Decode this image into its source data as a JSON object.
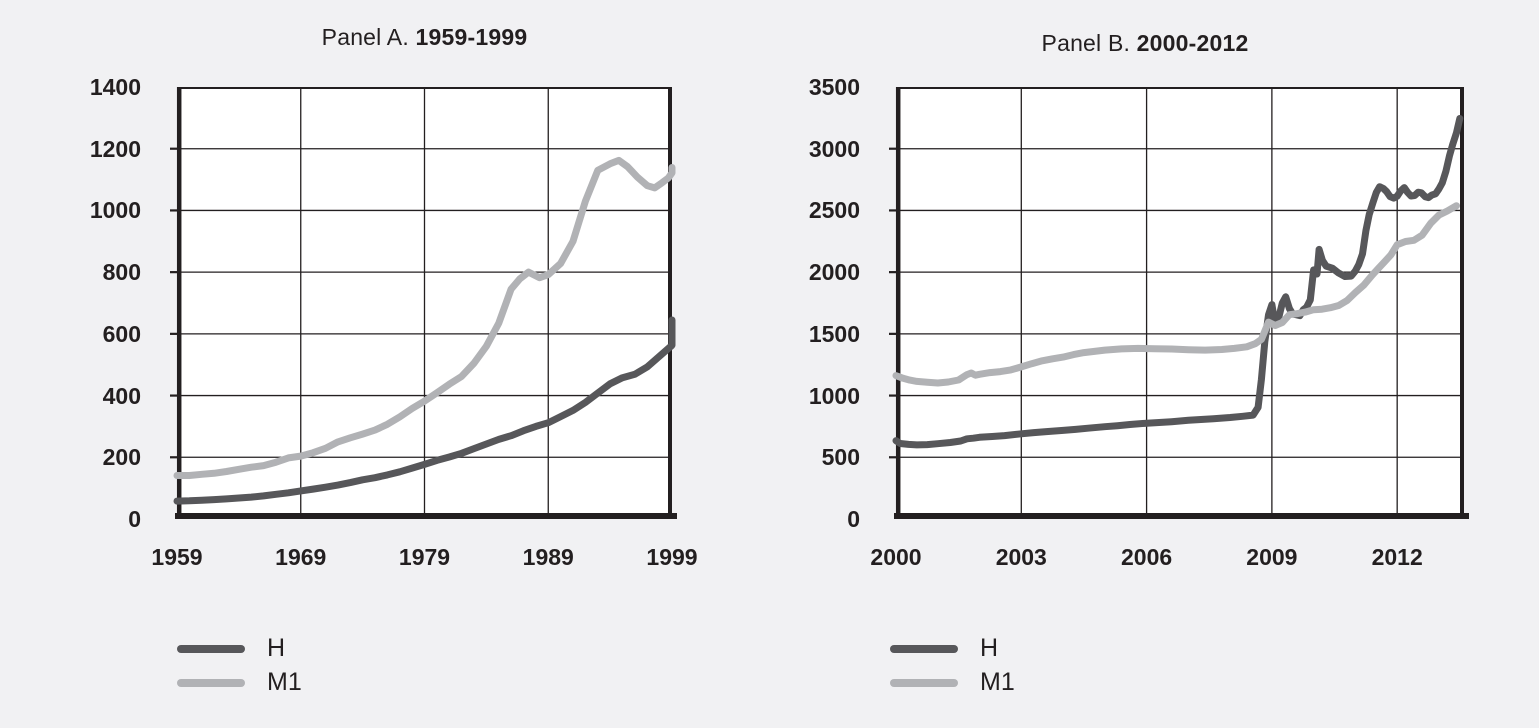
{
  "figure": {
    "background_color": "#f1f1f3",
    "plot_background_color": "#ffffff",
    "axis_color": "#231f20",
    "grid_color": "#231f20",
    "text_color": "#231f20"
  },
  "chart_data": [
    {
      "type": "line",
      "name": "panel-a",
      "title": "Panel A. 1959-1999",
      "title_regular": "Panel A. ",
      "title_bold": "1959-1999",
      "xlabel": "",
      "ylabel": "",
      "xlim": [
        1959,
        1999
      ],
      "ylim": [
        0,
        1400
      ],
      "x_ticks": [
        1959,
        1969,
        1979,
        1989,
        1999
      ],
      "x_gridlines": [
        1969,
        1979,
        1989
      ],
      "y_ticks": [
        0,
        200,
        400,
        600,
        800,
        1000,
        1200,
        1400
      ],
      "y_gridlines": [
        200,
        400,
        600,
        800,
        1000,
        1200
      ],
      "grid": true,
      "legend_position": "below-left",
      "series": [
        {
          "name": "H",
          "color": "#57575a",
          "stroke_width": 7,
          "points": [
            [
              1959,
              58
            ],
            [
              1960,
              59
            ],
            [
              1961,
              61
            ],
            [
              1962,
              63
            ],
            [
              1963,
              65
            ],
            [
              1964,
              68
            ],
            [
              1965,
              71
            ],
            [
              1966,
              75
            ],
            [
              1967,
              80
            ],
            [
              1968,
              85
            ],
            [
              1969,
              91
            ],
            [
              1970,
              97
            ],
            [
              1971,
              103
            ],
            [
              1972,
              110
            ],
            [
              1973,
              118
            ],
            [
              1974,
              127
            ],
            [
              1975,
              134
            ],
            [
              1976,
              143
            ],
            [
              1977,
              153
            ],
            [
              1978,
              165
            ],
            [
              1979,
              177
            ],
            [
              1980,
              190
            ],
            [
              1981,
              201
            ],
            [
              1982,
              213
            ],
            [
              1983,
              228
            ],
            [
              1984,
              243
            ],
            [
              1985,
              258
            ],
            [
              1986,
              270
            ],
            [
              1987,
              286
            ],
            [
              1988,
              300
            ],
            [
              1989,
              312
            ],
            [
              1990,
              332
            ],
            [
              1991,
              352
            ],
            [
              1992,
              378
            ],
            [
              1993,
              408
            ],
            [
              1994,
              438
            ],
            [
              1995,
              458
            ],
            [
              1996,
              469
            ],
            [
              1997,
              493
            ],
            [
              1998,
              528
            ],
            [
              1999,
              563
            ],
            [
              1999.5,
              585
            ],
            [
              1999.8,
              612
            ],
            [
              1999.95,
              645
            ]
          ]
        },
        {
          "name": "M1",
          "color": "#b1b2b5",
          "stroke_width": 7,
          "points": [
            [
              1959,
              141
            ],
            [
              1960,
              141
            ],
            [
              1961,
              145
            ],
            [
              1962,
              148
            ],
            [
              1963,
              154
            ],
            [
              1964,
              161
            ],
            [
              1965,
              168
            ],
            [
              1966,
              173
            ],
            [
              1967,
              184
            ],
            [
              1968,
              198
            ],
            [
              1969,
              204
            ],
            [
              1970,
              215
            ],
            [
              1971,
              229
            ],
            [
              1972,
              250
            ],
            [
              1973,
              263
            ],
            [
              1974,
              275
            ],
            [
              1975,
              288
            ],
            [
              1976,
              307
            ],
            [
              1977,
              331
            ],
            [
              1978,
              358
            ],
            [
              1979,
              382
            ],
            [
              1980,
              409
            ],
            [
              1981,
              437
            ],
            [
              1982,
              462
            ],
            [
              1983,
              505
            ],
            [
              1984,
              560
            ],
            [
              1985,
              635
            ],
            [
              1986,
              745
            ],
            [
              1986.7,
              778
            ],
            [
              1987.4,
              800
            ],
            [
              1988.3,
              782
            ],
            [
              1989,
              792
            ],
            [
              1990,
              828
            ],
            [
              1991,
              900
            ],
            [
              1992,
              1030
            ],
            [
              1993,
              1130
            ],
            [
              1994,
              1151
            ],
            [
              1994.7,
              1162
            ],
            [
              1995.4,
              1142
            ],
            [
              1996.2,
              1108
            ],
            [
              1997,
              1080
            ],
            [
              1997.6,
              1073
            ],
            [
              1998.2,
              1090
            ],
            [
              1998.7,
              1105
            ],
            [
              1999.3,
              1122
            ],
            [
              1999.95,
              1139
            ]
          ]
        }
      ]
    },
    {
      "type": "line",
      "name": "panel-b",
      "title": "Panel B. 2000-2012",
      "title_regular": "Panel B. ",
      "title_bold": "2000-2012",
      "xlabel": "",
      "ylabel": "",
      "xlim": [
        2000,
        2013.6
      ],
      "ylim": [
        0,
        3500
      ],
      "x_ticks": [
        2000,
        2003,
        2006,
        2009,
        2012
      ],
      "x_gridlines": [
        2003,
        2006,
        2009,
        2012
      ],
      "y_ticks": [
        0,
        500,
        1000,
        1500,
        2000,
        2500,
        3000,
        3500
      ],
      "y_gridlines": [
        500,
        1000,
        1500,
        2000,
        2500,
        3000
      ],
      "grid": true,
      "legend_position": "below-left",
      "series": [
        {
          "name": "H",
          "color": "#57575a",
          "stroke_width": 7,
          "points": [
            [
              2000.0,
              634
            ],
            [
              2000.1,
              612
            ],
            [
              2000.3,
              604
            ],
            [
              2000.5,
              600
            ],
            [
              2000.75,
              603
            ],
            [
              2001.0,
              610
            ],
            [
              2001.3,
              620
            ],
            [
              2001.55,
              632
            ],
            [
              2001.7,
              650
            ],
            [
              2001.85,
              655
            ],
            [
              2002.0,
              662
            ],
            [
              2002.3,
              668
            ],
            [
              2002.6,
              676
            ],
            [
              2003.0,
              690
            ],
            [
              2003.3,
              700
            ],
            [
              2003.6,
              708
            ],
            [
              2004.0,
              718
            ],
            [
              2004.3,
              726
            ],
            [
              2004.6,
              736
            ],
            [
              2005.0,
              748
            ],
            [
              2005.3,
              756
            ],
            [
              2005.6,
              766
            ],
            [
              2006.0,
              776
            ],
            [
              2006.3,
              782
            ],
            [
              2006.6,
              788
            ],
            [
              2007.0,
              800
            ],
            [
              2007.3,
              806
            ],
            [
              2007.6,
              813
            ],
            [
              2008.0,
              822
            ],
            [
              2008.3,
              832
            ],
            [
              2008.55,
              842
            ],
            [
              2008.67,
              905
            ],
            [
              2008.75,
              1130
            ],
            [
              2008.83,
              1436
            ],
            [
              2008.92,
              1654
            ],
            [
              2009.0,
              1737
            ],
            [
              2009.08,
              1570
            ],
            [
              2009.17,
              1640
            ],
            [
              2009.25,
              1750
            ],
            [
              2009.33,
              1800
            ],
            [
              2009.42,
              1705
            ],
            [
              2009.5,
              1660
            ],
            [
              2009.58,
              1655
            ],
            [
              2009.67,
              1648
            ],
            [
              2009.75,
              1695
            ],
            [
              2009.83,
              1715
            ],
            [
              2009.92,
              1775
            ],
            [
              2010.0,
              2018
            ],
            [
              2010.08,
              1985
            ],
            [
              2010.13,
              2184
            ],
            [
              2010.21,
              2095
            ],
            [
              2010.3,
              2048
            ],
            [
              2010.45,
              2032
            ],
            [
              2010.6,
              1992
            ],
            [
              2010.75,
              1965
            ],
            [
              2010.9,
              1968
            ],
            [
              2011.0,
              2010
            ],
            [
              2011.08,
              2062
            ],
            [
              2011.17,
              2148
            ],
            [
              2011.25,
              2336
            ],
            [
              2011.33,
              2466
            ],
            [
              2011.42,
              2565
            ],
            [
              2011.5,
              2645
            ],
            [
              2011.58,
              2692
            ],
            [
              2011.67,
              2678
            ],
            [
              2011.75,
              2652
            ],
            [
              2011.83,
              2612
            ],
            [
              2011.92,
              2600
            ],
            [
              2012.0,
              2615
            ],
            [
              2012.08,
              2656
            ],
            [
              2012.17,
              2685
            ],
            [
              2012.25,
              2646
            ],
            [
              2012.33,
              2617
            ],
            [
              2012.42,
              2621
            ],
            [
              2012.5,
              2648
            ],
            [
              2012.58,
              2643
            ],
            [
              2012.67,
              2611
            ],
            [
              2012.75,
              2604
            ],
            [
              2012.83,
              2624
            ],
            [
              2012.92,
              2635
            ],
            [
              2013.0,
              2674
            ],
            [
              2013.08,
              2724
            ],
            [
              2013.17,
              2820
            ],
            [
              2013.25,
              2940
            ],
            [
              2013.33,
              3035
            ],
            [
              2013.42,
              3130
            ],
            [
              2013.5,
              3245
            ]
          ]
        },
        {
          "name": "M1",
          "color": "#b1b2b5",
          "stroke_width": 7,
          "points": [
            [
              2000.0,
              1162
            ],
            [
              2000.17,
              1140
            ],
            [
              2000.33,
              1125
            ],
            [
              2000.5,
              1115
            ],
            [
              2000.75,
              1108
            ],
            [
              2001.0,
              1102
            ],
            [
              2001.25,
              1110
            ],
            [
              2001.5,
              1126
            ],
            [
              2001.7,
              1170
            ],
            [
              2001.8,
              1183
            ],
            [
              2001.9,
              1165
            ],
            [
              2002.0,
              1172
            ],
            [
              2002.25,
              1186
            ],
            [
              2002.5,
              1194
            ],
            [
              2002.75,
              1208
            ],
            [
              2003.0,
              1232
            ],
            [
              2003.25,
              1258
            ],
            [
              2003.5,
              1282
            ],
            [
              2003.75,
              1298
            ],
            [
              2004.0,
              1312
            ],
            [
              2004.25,
              1332
            ],
            [
              2004.5,
              1348
            ],
            [
              2004.75,
              1358
            ],
            [
              2005.0,
              1368
            ],
            [
              2005.4,
              1378
            ],
            [
              2005.8,
              1382
            ],
            [
              2006.2,
              1380
            ],
            [
              2006.6,
              1377
            ],
            [
              2007.0,
              1372
            ],
            [
              2007.4,
              1368
            ],
            [
              2007.8,
              1373
            ],
            [
              2008.1,
              1382
            ],
            [
              2008.4,
              1395
            ],
            [
              2008.6,
              1420
            ],
            [
              2008.75,
              1455
            ],
            [
              2008.92,
              1595
            ],
            [
              2009.08,
              1568
            ],
            [
              2009.25,
              1592
            ],
            [
              2009.42,
              1655
            ],
            [
              2009.6,
              1663
            ],
            [
              2009.8,
              1676
            ],
            [
              2010.0,
              1696
            ],
            [
              2010.2,
              1700
            ],
            [
              2010.4,
              1712
            ],
            [
              2010.6,
              1730
            ],
            [
              2010.8,
              1770
            ],
            [
              2011.0,
              1835
            ],
            [
              2011.2,
              1895
            ],
            [
              2011.4,
              1975
            ],
            [
              2011.55,
              2030
            ],
            [
              2011.7,
              2085
            ],
            [
              2011.85,
              2140
            ],
            [
              2012.0,
              2222
            ],
            [
              2012.2,
              2248
            ],
            [
              2012.4,
              2258
            ],
            [
              2012.6,
              2300
            ],
            [
              2012.8,
              2395
            ],
            [
              2013.0,
              2462
            ],
            [
              2013.2,
              2495
            ],
            [
              2013.42,
              2538
            ]
          ]
        }
      ]
    }
  ]
}
